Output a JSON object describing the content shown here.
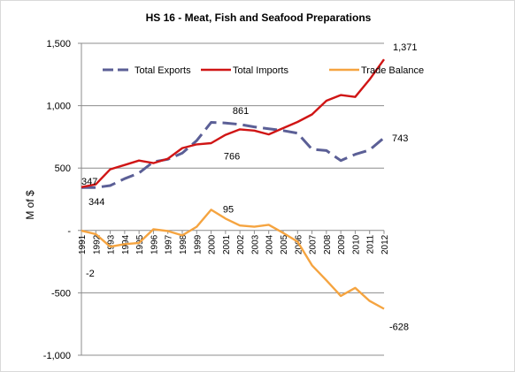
{
  "chart_data": {
    "type": "line",
    "title": "HS 16 - Meat, Fish and Seafood Preparations",
    "ylabel": "M of $",
    "xlabel": "",
    "ylim": [
      -1000,
      1500
    ],
    "yticks": [
      1500,
      1000,
      500,
      0,
      -500,
      -1000
    ],
    "ytick_labels": [
      "1,500",
      "1,000",
      "500",
      "-",
      "-500",
      "-1,000"
    ],
    "x": [
      "1991",
      "1992",
      "1993",
      "1994",
      "1995",
      "1996",
      "1997",
      "1998",
      "1999",
      "2000",
      "2001",
      "2002",
      "2003",
      "2004",
      "2005",
      "2006",
      "2007",
      "2008",
      "2009",
      "2010",
      "2011",
      "2012"
    ],
    "grid": "horizontal",
    "legend_position": "top",
    "series": [
      {
        "name": "Total Exports",
        "color": "#5b5f96",
        "style": "dashed",
        "values": [
          344,
          344,
          360,
          415,
          460,
          550,
          570,
          620,
          720,
          866,
          861,
          850,
          830,
          815,
          800,
          780,
          650,
          640,
          560,
          610,
          645,
          743
        ]
      },
      {
        "name": "Total Imports",
        "color": "#d01515",
        "style": "solid",
        "values": [
          347,
          370,
          490,
          525,
          560,
          540,
          575,
          660,
          690,
          700,
          766,
          810,
          800,
          770,
          820,
          870,
          930,
          1040,
          1085,
          1070,
          1210,
          1371
        ]
      },
      {
        "name": "Trade Balance",
        "color": "#f5a440",
        "style": "solid",
        "values": [
          -2,
          -30,
          -130,
          -110,
          -100,
          10,
          -5,
          -40,
          30,
          166,
          95,
          40,
          30,
          45,
          -20,
          -90,
          -280,
          -400,
          -525,
          -460,
          -565,
          -628
        ]
      }
    ],
    "data_labels": [
      {
        "series": 1,
        "index": 0,
        "text": "347",
        "anchor": "start",
        "dx": 0,
        "dy": -7
      },
      {
        "series": 0,
        "index": 0,
        "text": "344",
        "anchor": "start",
        "dx": 8,
        "dy": 16
      },
      {
        "series": 0,
        "index": 10,
        "text": "861",
        "anchor": "start",
        "dx": 8,
        "dy": -14
      },
      {
        "series": 1,
        "index": 10,
        "text": "766",
        "anchor": "start",
        "dx": -2,
        "dy": 24
      },
      {
        "series": 2,
        "index": 10,
        "text": "95",
        "anchor": "start",
        "dx": -3,
        "dy": -11
      },
      {
        "series": 2,
        "index": 0,
        "text": "-2",
        "anchor": "start",
        "dx": 5,
        "dy": 48
      },
      {
        "series": 1,
        "index": 21,
        "text": "1,371",
        "anchor": "start",
        "dx": 10,
        "dy": -14
      },
      {
        "series": 0,
        "index": 21,
        "text": "743",
        "anchor": "start",
        "dx": 9,
        "dy": 0
      },
      {
        "series": 2,
        "index": 21,
        "text": "-628",
        "anchor": "start",
        "dx": 6,
        "dy": 20
      }
    ]
  }
}
